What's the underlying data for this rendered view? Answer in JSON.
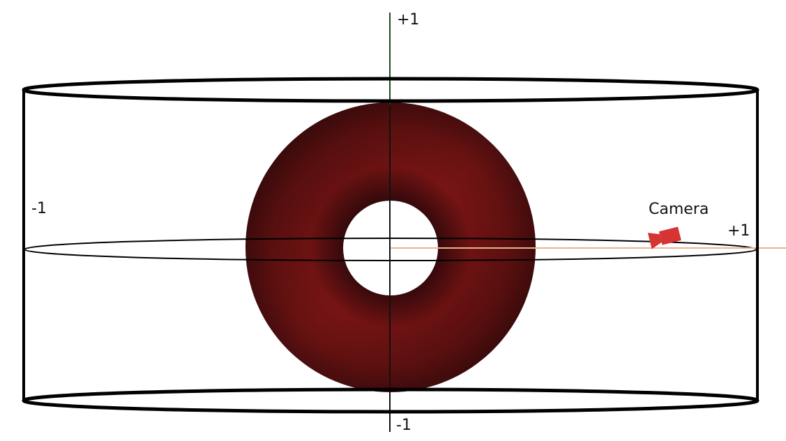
{
  "labels": {
    "y_top": "+1",
    "y_bottom": "-1",
    "x_left": "-1",
    "x_right": "+1",
    "camera": "Camera"
  },
  "colors": {
    "torus_light": "#8a1a1a",
    "torus_mid": "#6e1212",
    "torus_dark": "#2b0a0c",
    "axis_line": "#111111",
    "vertical_axis_top": "#1e4a1e",
    "camera_ray": "#e8b48c",
    "camera_body": "#d63333",
    "cylinder": "#000000"
  },
  "icons": {
    "camera": "video-camera-icon"
  }
}
